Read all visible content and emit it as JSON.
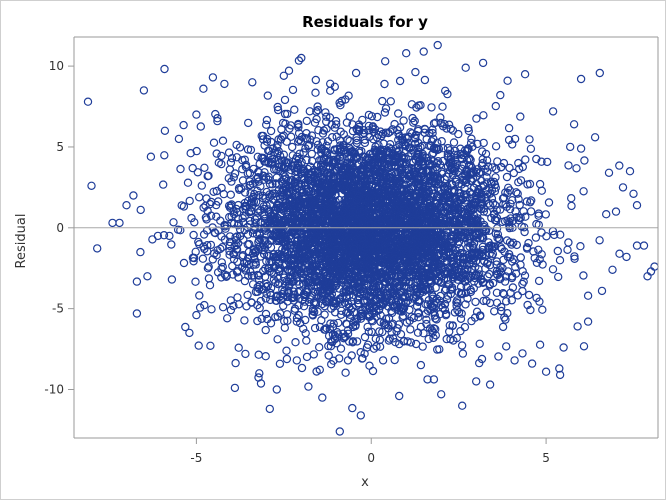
{
  "chart_data": {
    "type": "scatter",
    "title": "Residuals for y",
    "xlabel": "x",
    "ylabel": "Residual",
    "xlim": [
      -8.5,
      8.2
    ],
    "ylim": [
      -13,
      11.8
    ],
    "x_ticks": [
      -5,
      0,
      5
    ],
    "y_ticks": [
      -10,
      -5,
      0,
      5,
      10
    ],
    "reference_line_y": 0,
    "grid": false,
    "legend": "none",
    "marker": "open-circle",
    "color": "#1f3d99",
    "series": [
      {
        "points": [
          [
            -8.6,
            0.8
          ],
          [
            -8.1,
            7.8
          ],
          [
            -8.0,
            2.6
          ],
          [
            -7.4,
            0.3
          ],
          [
            -7.2,
            0.3
          ],
          [
            -6.7,
            -5.3
          ],
          [
            -6.5,
            8.5
          ],
          [
            -6.3,
            4.4
          ],
          [
            -5.0,
            7.0
          ],
          [
            -5.0,
            -5.4
          ],
          [
            -4.8,
            8.6
          ],
          [
            -4.2,
            8.9
          ],
          [
            -3.9,
            -9.9
          ],
          [
            -3.6,
            -7.8
          ],
          [
            -2.9,
            -11.2
          ],
          [
            -2.0,
            10.5
          ],
          [
            -1.4,
            -10.5
          ],
          [
            -0.9,
            -12.6
          ],
          [
            -0.3,
            -11.6
          ],
          [
            1.0,
            10.8
          ],
          [
            1.9,
            11.3
          ],
          [
            2.6,
            -11.0
          ],
          [
            3.2,
            10.2
          ],
          [
            3.4,
            -9.7
          ],
          [
            4.4,
            9.5
          ],
          [
            4.6,
            -8.4
          ],
          [
            5.0,
            -8.9
          ],
          [
            5.4,
            -9.1
          ],
          [
            6.0,
            9.2
          ],
          [
            6.2,
            -5.8
          ],
          [
            7.4,
            3.5
          ],
          [
            7.6,
            -1.1
          ],
          [
            7.8,
            -1.1
          ],
          [
            7.9,
            -3.0
          ],
          [
            8.0,
            -2.7
          ],
          [
            8.1,
            -2.4
          ],
          [
            6.0,
            4.9
          ],
          [
            6.2,
            -4.2
          ],
          [
            7.0,
            1.0
          ],
          [
            7.3,
            -1.8
          ],
          [
            7.5,
            2.1
          ],
          [
            -7.0,
            1.4
          ],
          [
            -6.8,
            2.0
          ],
          [
            -6.6,
            -1.5
          ],
          [
            -6.4,
            -3.0
          ],
          [
            -5.9,
            6.0
          ],
          [
            -5.7,
            -3.2
          ],
          [
            -6.1,
            -0.5
          ],
          [
            -5.5,
            5.5
          ],
          [
            -5.2,
            -6.5
          ],
          [
            -4.6,
            -7.3
          ],
          [
            -4.4,
            6.6
          ],
          [
            -3.4,
            9.0
          ],
          [
            -3.2,
            -9.0
          ],
          [
            -2.5,
            9.4
          ],
          [
            -2.7,
            -10.0
          ],
          [
            0.4,
            10.3
          ],
          [
            0.8,
            -10.4
          ],
          [
            1.5,
            10.9
          ],
          [
            2.0,
            -10.3
          ],
          [
            2.7,
            9.9
          ],
          [
            3.0,
            -9.5
          ],
          [
            3.9,
            9.1
          ],
          [
            4.1,
            -8.2
          ],
          [
            5.2,
            7.2
          ],
          [
            5.5,
            -7.4
          ],
          [
            5.8,
            6.4
          ],
          [
            5.9,
            -6.1
          ],
          [
            6.4,
            5.6
          ],
          [
            6.6,
            -3.9
          ],
          [
            6.8,
            3.4
          ],
          [
            6.9,
            -2.6
          ],
          [
            7.1,
            -1.6
          ],
          [
            7.2,
            2.5
          ],
          [
            7.6,
            1.4
          ]
        ]
      }
    ]
  }
}
